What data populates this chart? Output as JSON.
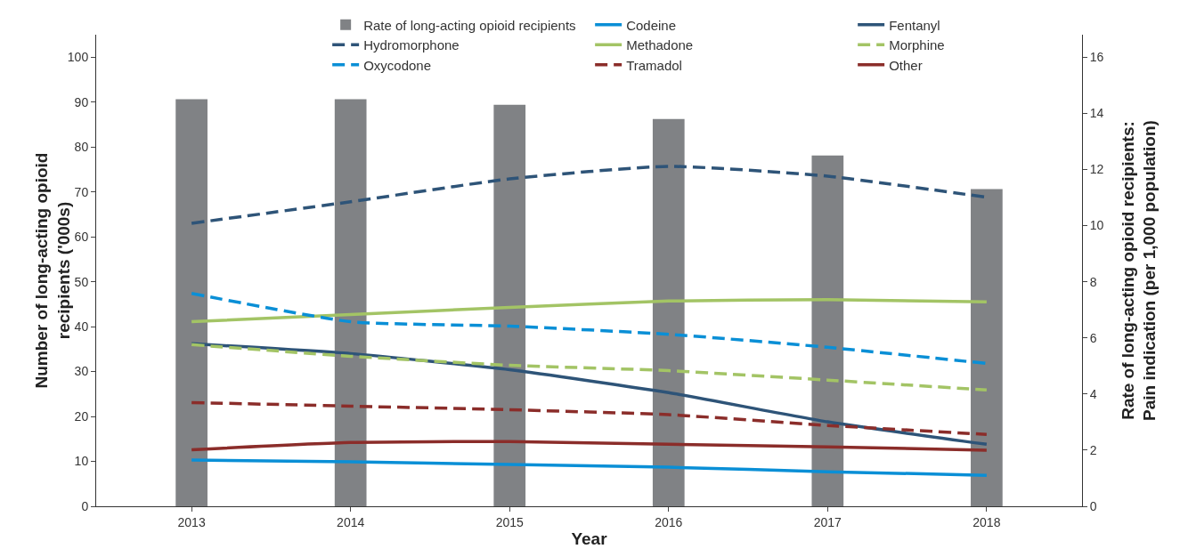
{
  "chart_data": {
    "type": "line",
    "xlabel": "Year",
    "ylabel": "Number of long-acting opioid recipients ('000s)",
    "y2label": "Rate of long-acting opioid recipients: Pain indication (per 1,000 population)",
    "categories": [
      "2013",
      "2014",
      "2015",
      "2016",
      "2017",
      "2018"
    ],
    "series": [
      {
        "name": "Rate of long-acting opioid recipients",
        "type": "bar",
        "axis": "y2",
        "color": "#808285",
        "values": [
          14.5,
          14.5,
          14.3,
          13.8,
          12.5,
          11.3
        ]
      },
      {
        "name": "Codeine",
        "color": "#0a8fd6",
        "line_style": "solid",
        "values": [
          10.3,
          9.9,
          9.3,
          8.7,
          7.7,
          6.9
        ]
      },
      {
        "name": "Fentanyl",
        "color": "#2e5478",
        "line_style": "solid",
        "values": [
          36.2,
          34.0,
          30.4,
          25.3,
          18.8,
          13.8
        ]
      },
      {
        "name": "Hydromorphone",
        "color": "#2e5478",
        "line_style": "dashed",
        "values": [
          63.0,
          67.8,
          72.9,
          75.7,
          73.5,
          68.8
        ]
      },
      {
        "name": "Methadone",
        "color": "#a3c465",
        "line_style": "solid",
        "values": [
          41.1,
          42.7,
          44.3,
          45.7,
          46.0,
          45.5
        ]
      },
      {
        "name": "Morphine",
        "color": "#a3c465",
        "line_style": "dashed",
        "values": [
          36.0,
          33.4,
          31.4,
          30.2,
          28.1,
          25.9
        ]
      },
      {
        "name": "Oxycodone",
        "color": "#0a8fd6",
        "line_style": "dashed",
        "values": [
          47.4,
          41.1,
          40.1,
          38.3,
          35.4,
          31.8
        ]
      },
      {
        "name": "Tramadol",
        "color": "#8b2d2a",
        "line_style": "dashed",
        "values": [
          23.1,
          22.3,
          21.5,
          20.4,
          18.0,
          16.0
        ]
      },
      {
        "name": "Other",
        "color": "#8b2d2a",
        "line_style": "solid",
        "values": [
          12.6,
          14.2,
          14.4,
          13.8,
          13.2,
          12.5
        ]
      }
    ],
    "ylim": [
      0,
      105
    ],
    "yticks": [
      0,
      10,
      20,
      30,
      40,
      50,
      60,
      70,
      80,
      90,
      100
    ],
    "y2lim": [
      0,
      16.8
    ],
    "y2ticks": [
      0,
      2,
      4,
      6,
      8,
      10,
      12,
      14,
      16
    ],
    "grid": false,
    "legend": "top",
    "marker": "none"
  }
}
